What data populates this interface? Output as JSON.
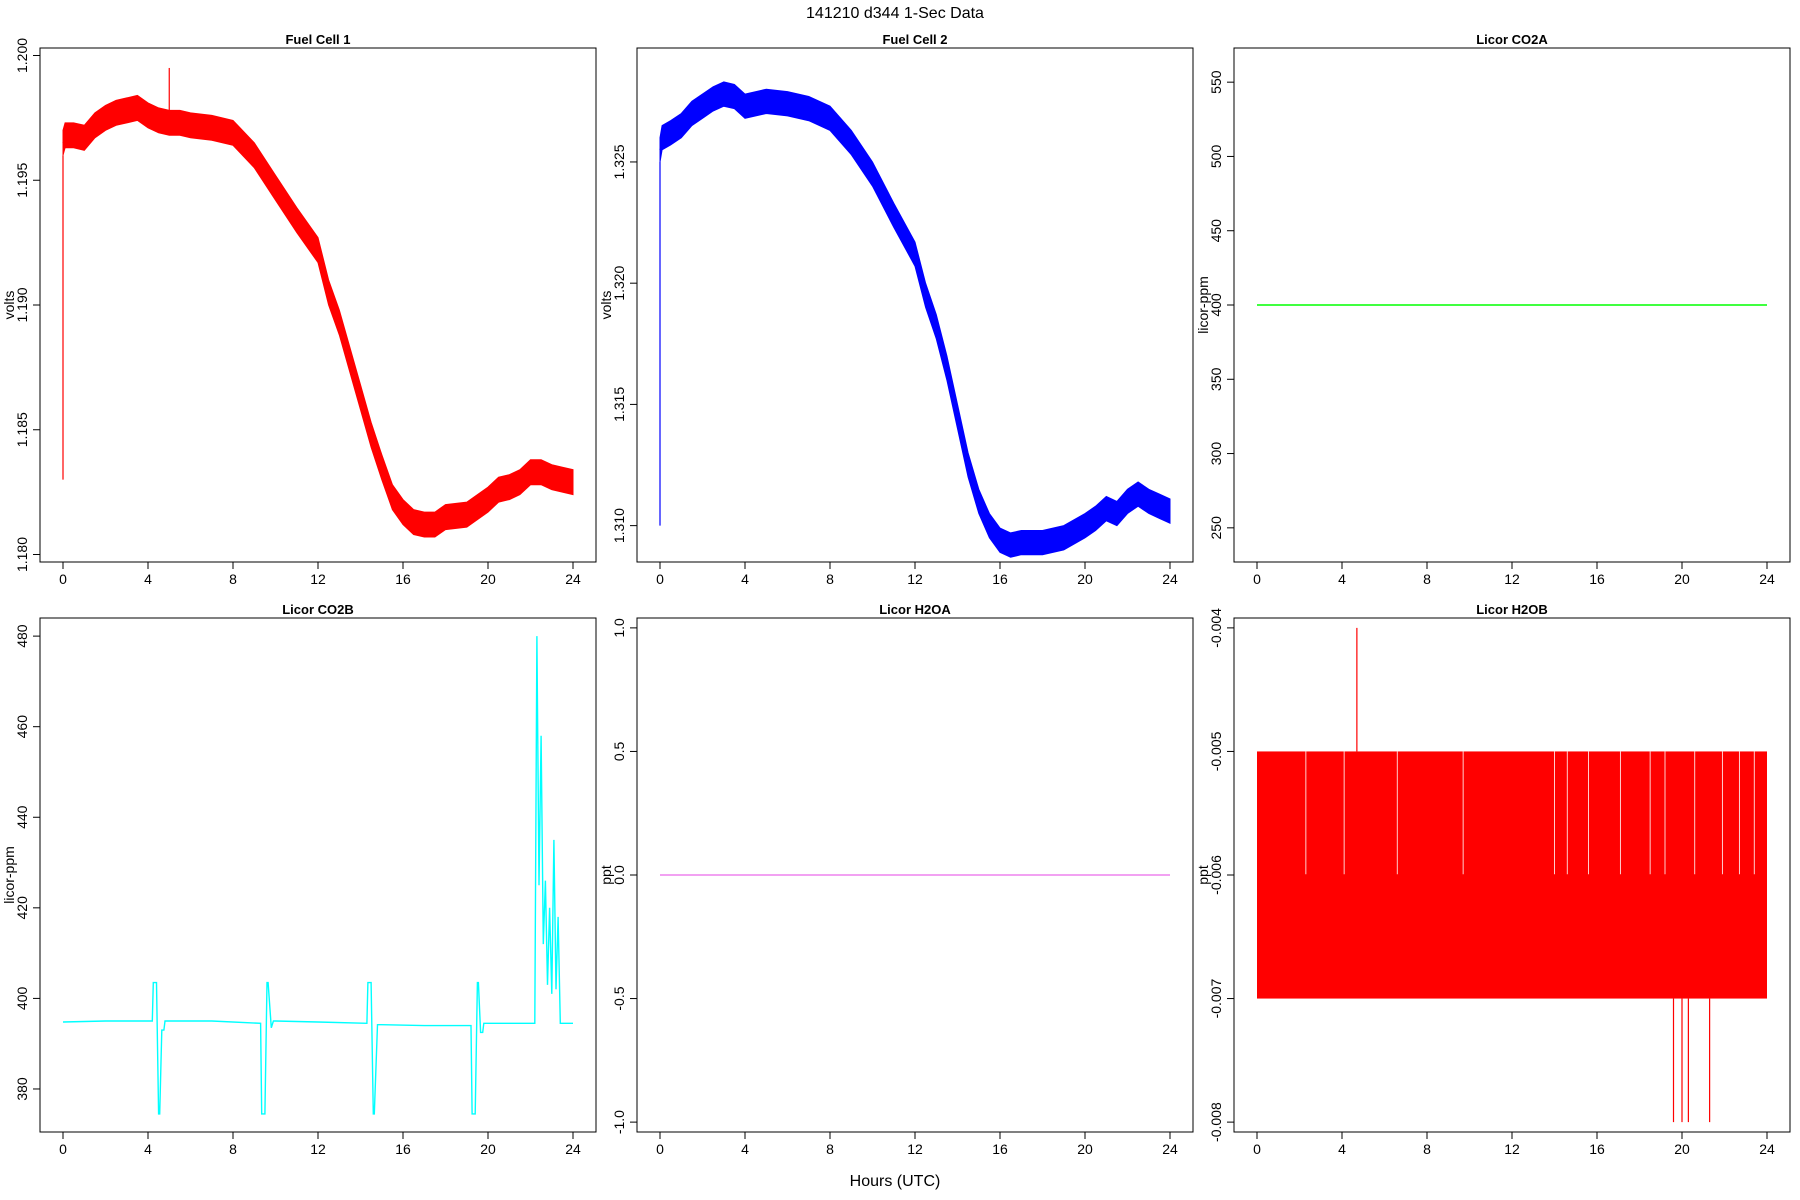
{
  "figure": {
    "title": "141210   d344   1-Sec Data",
    "xlabel": "Hours (UTC)"
  },
  "chart_data": [
    {
      "type": "line",
      "title": "Fuel Cell 1",
      "ylabel": "volts",
      "color": "#ff0000",
      "xlim": [
        0,
        24
      ],
      "ylim": [
        1.1797,
        1.2003
      ],
      "xticks": [
        0,
        4,
        8,
        12,
        16,
        20,
        24
      ],
      "xticklabels": [
        "0",
        "4",
        "8",
        "12",
        "16",
        "20",
        "24"
      ],
      "yticks": [
        1.18,
        1.185,
        1.19,
        1.195,
        1.2
      ],
      "yticklabels": [
        "1.180",
        "1.185",
        "1.190",
        "1.195",
        "1.200"
      ],
      "band": 0.0005,
      "spikes": [
        [
          0.0,
          1.183,
          1.196
        ],
        [
          5.0,
          1.197,
          1.1995
        ]
      ],
      "x": [
        0.0,
        0.1,
        0.5,
        1.0,
        1.5,
        2.0,
        2.5,
        3.0,
        3.5,
        4.0,
        4.5,
        5.0,
        5.5,
        6.0,
        7.0,
        8.0,
        9.0,
        10.0,
        11.0,
        12.0,
        12.5,
        13.0,
        13.5,
        14.0,
        14.5,
        15.0,
        15.5,
        16.0,
        16.5,
        17.0,
        17.5,
        18.0,
        19.0,
        20.0,
        20.5,
        21.0,
        21.5,
        22.0,
        22.5,
        23.0,
        23.5,
        24.0
      ],
      "y": [
        1.1965,
        1.1968,
        1.1968,
        1.1967,
        1.1972,
        1.1975,
        1.1977,
        1.1978,
        1.1979,
        1.1976,
        1.1974,
        1.1973,
        1.1973,
        1.1972,
        1.1971,
        1.1969,
        1.196,
        1.1947,
        1.1934,
        1.1922,
        1.1905,
        1.1893,
        1.1878,
        1.1863,
        1.1848,
        1.1835,
        1.1823,
        1.1817,
        1.1813,
        1.1812,
        1.1812,
        1.1815,
        1.1816,
        1.1822,
        1.1826,
        1.1827,
        1.1829,
        1.1833,
        1.1833,
        1.1831,
        1.183,
        1.1829
      ]
    },
    {
      "type": "line",
      "title": "Fuel Cell 2",
      "ylabel": "volts",
      "color": "#0000ff",
      "xlim": [
        0,
        24
      ],
      "ylim": [
        1.3085,
        1.3297
      ],
      "xticks": [
        0,
        4,
        8,
        12,
        16,
        20,
        24
      ],
      "xticklabels": [
        "0",
        "4",
        "8",
        "12",
        "16",
        "20",
        "24"
      ],
      "yticks": [
        1.31,
        1.315,
        1.32,
        1.325
      ],
      "yticklabels": [
        "1.310",
        "1.315",
        "1.320",
        "1.325"
      ],
      "band": 0.0005,
      "spikes": [
        [
          0.0,
          1.31,
          1.325
        ]
      ],
      "x": [
        0.0,
        0.1,
        0.5,
        1.0,
        1.5,
        2.0,
        2.5,
        3.0,
        3.5,
        4.0,
        5.0,
        6.0,
        7.0,
        8.0,
        9.0,
        10.0,
        11.0,
        12.0,
        12.5,
        13.0,
        13.5,
        14.0,
        14.5,
        15.0,
        15.5,
        16.0,
        16.5,
        17.0,
        17.5,
        18.0,
        19.0,
        20.0,
        20.5,
        21.0,
        21.5,
        22.0,
        22.5,
        23.0,
        23.5,
        24.0
      ],
      "y": [
        1.3255,
        1.326,
        1.3262,
        1.3265,
        1.327,
        1.3273,
        1.3276,
        1.3278,
        1.3277,
        1.3273,
        1.3275,
        1.3274,
        1.3272,
        1.3268,
        1.3258,
        1.3245,
        1.3228,
        1.3212,
        1.3195,
        1.3182,
        1.3165,
        1.3145,
        1.3125,
        1.311,
        1.31,
        1.3094,
        1.3092,
        1.3093,
        1.3093,
        1.3093,
        1.3095,
        1.31,
        1.3103,
        1.3107,
        1.3105,
        1.311,
        1.3113,
        1.311,
        1.3108,
        1.3106
      ]
    },
    {
      "type": "line",
      "title": "Licor CO2A",
      "ylabel": "licor-ppm",
      "color": "#00ff00",
      "xlim": [
        0,
        24
      ],
      "ylim": [
        227,
        573
      ],
      "xticks": [
        0,
        4,
        8,
        12,
        16,
        20,
        24
      ],
      "xticklabels": [
        "0",
        "4",
        "8",
        "12",
        "16",
        "20",
        "24"
      ],
      "yticks": [
        250,
        300,
        350,
        400,
        450,
        500,
        550
      ],
      "yticklabels": [
        "250",
        "300",
        "350",
        "400",
        "450",
        "500",
        "550"
      ],
      "x": [
        0,
        24
      ],
      "y": [
        400,
        400
      ]
    },
    {
      "type": "line",
      "title": "Licor CO2B",
      "ylabel": "licor-ppm",
      "color": "#00ffff",
      "xlim": [
        0,
        24
      ],
      "ylim": [
        370.5,
        484
      ],
      "xticks": [
        0,
        4,
        8,
        12,
        16,
        20,
        24
      ],
      "xticklabels": [
        "0",
        "4",
        "8",
        "12",
        "16",
        "20",
        "24"
      ],
      "yticks": [
        380,
        400,
        420,
        440,
        460,
        480
      ],
      "yticklabels": [
        "380",
        "400",
        "420",
        "440",
        "460",
        "480"
      ],
      "x": [
        0.0,
        2.0,
        4.2,
        4.25,
        4.4,
        4.5,
        4.55,
        4.65,
        4.75,
        4.8,
        7.0,
        9.3,
        9.35,
        9.5,
        9.6,
        9.65,
        9.8,
        9.9,
        10.0,
        12.0,
        14.3,
        14.35,
        14.5,
        14.6,
        14.65,
        14.8,
        15.0,
        17.0,
        19.2,
        19.25,
        19.4,
        19.5,
        19.55,
        19.65,
        19.75,
        19.8,
        20.0,
        22.2,
        22.3,
        22.4,
        22.5,
        22.6,
        22.7,
        22.8,
        22.9,
        23.0,
        23.1,
        23.2,
        23.3,
        23.4,
        23.5,
        24.0
      ],
      "y": [
        394.8,
        395.0,
        395.0,
        403.5,
        403.5,
        374.5,
        374.5,
        393.0,
        393.0,
        395.0,
        395.0,
        394.5,
        374.5,
        374.5,
        403.5,
        403.5,
        393.5,
        395.0,
        395.0,
        394.8,
        394.5,
        403.5,
        403.5,
        374.5,
        374.5,
        394.2,
        394.2,
        394.0,
        394.0,
        374.5,
        374.5,
        403.5,
        403.5,
        392.5,
        392.5,
        394.5,
        394.5,
        394.5,
        480.0,
        425.0,
        458.0,
        412.0,
        426.0,
        403.0,
        420.0,
        401.0,
        435.0,
        402.0,
        418.0,
        394.5,
        394.5,
        394.5
      ]
    },
    {
      "type": "line",
      "title": "Licor H2OA",
      "ylabel": "ppt",
      "color": "#ee82ee",
      "xlim": [
        0,
        24
      ],
      "ylim": [
        -1.04,
        1.04
      ],
      "xticks": [
        0,
        4,
        8,
        12,
        16,
        20,
        24
      ],
      "xticklabels": [
        "0",
        "4",
        "8",
        "12",
        "16",
        "20",
        "24"
      ],
      "yticks": [
        -1.0,
        -0.5,
        0.0,
        0.5,
        1.0
      ],
      "yticklabels": [
        "-1.0",
        "-0.5",
        "0.0",
        "0.5",
        "1.0"
      ],
      "x": [
        0,
        24
      ],
      "y": [
        0,
        0
      ]
    },
    {
      "type": "line",
      "title": "Licor H2OB",
      "ylabel": "ppt",
      "color": "#ff0000",
      "xlim": [
        0,
        24
      ],
      "ylim": [
        -0.00808,
        -0.00392
      ],
      "xticks": [
        0,
        4,
        8,
        12,
        16,
        20,
        24
      ],
      "xticklabels": [
        "0",
        "4",
        "8",
        "12",
        "16",
        "20",
        "24"
      ],
      "yticks": [
        -0.008,
        -0.007,
        -0.006,
        -0.005,
        -0.004
      ],
      "yticklabels": [
        "-0.008",
        "-0.007",
        "-0.006",
        "-0.005",
        "-0.004"
      ],
      "bands": [
        [
          -0.006,
          -0.005
        ],
        [
          -0.007,
          -0.006
        ]
      ],
      "spikes": [
        [
          4.7,
          -0.005,
          -0.004
        ],
        [
          19.6,
          -0.008,
          -0.007
        ],
        [
          20.0,
          -0.008,
          -0.007
        ],
        [
          20.3,
          -0.008,
          -0.007
        ],
        [
          21.3,
          -0.008,
          -0.007
        ]
      ],
      "x": [
        0,
        24
      ],
      "y": [
        -0.006,
        -0.006
      ]
    }
  ]
}
